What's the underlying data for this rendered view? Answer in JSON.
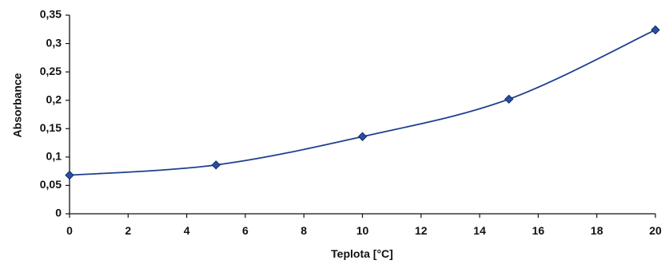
{
  "chart_data": {
    "type": "line",
    "title": "",
    "xlabel": "Teplota [°C]",
    "ylabel": "Absorbance",
    "xlim": [
      0,
      20
    ],
    "ylim": [
      0,
      0.35
    ],
    "x_ticks": [
      0,
      2,
      4,
      6,
      8,
      10,
      12,
      14,
      16,
      18,
      20
    ],
    "y_ticks": [
      0,
      0.05,
      0.1,
      0.15,
      0.2,
      0.25,
      0.3,
      0.35
    ],
    "x_tick_labels": [
      "0",
      "2",
      "4",
      "6",
      "8",
      "10",
      "12",
      "14",
      "16",
      "18",
      "20"
    ],
    "y_tick_labels": [
      "0",
      "0,05",
      "0,1",
      "0,15",
      "0,2",
      "0,25",
      "0,3",
      "0,35"
    ],
    "grid": false,
    "smooth": true,
    "marker": "diamond",
    "series": [
      {
        "x": [
          0,
          5,
          10,
          15,
          20
        ],
        "y": [
          0.068,
          0.086,
          0.136,
          0.202,
          0.324
        ]
      }
    ],
    "colors": {
      "line": "#1f3f8f",
      "marker": "#2a4f9f",
      "axis": "#111111"
    }
  }
}
